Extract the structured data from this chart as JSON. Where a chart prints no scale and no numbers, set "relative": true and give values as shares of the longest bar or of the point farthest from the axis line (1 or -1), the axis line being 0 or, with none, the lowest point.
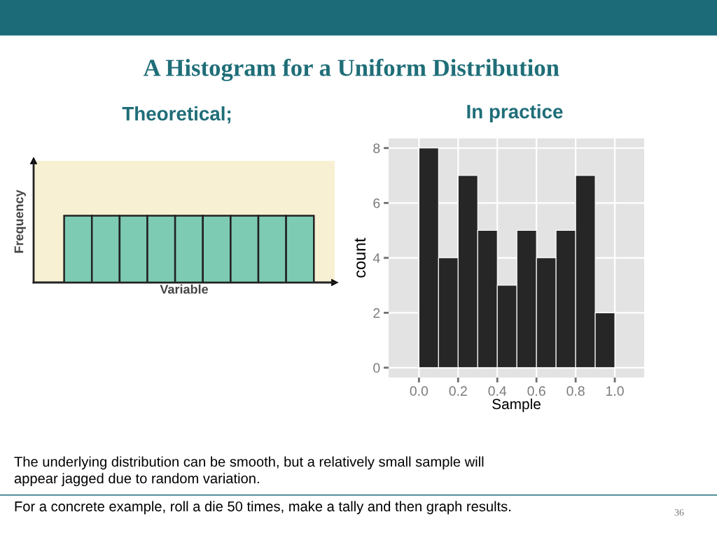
{
  "chart_data": [
    {
      "type": "bar",
      "title": "A Histogram for a Uniform Distribution",
      "subtitle": "Theoretical;",
      "categories": [
        null,
        null,
        null,
        null,
        null,
        null,
        null,
        null,
        null
      ],
      "values": [
        1,
        1,
        1,
        1,
        1,
        1,
        1,
        1,
        1
      ],
      "relative": true,
      "color": "#7ecbb4",
      "xlabel": "Variable",
      "ylabel": "Frequency",
      "tick_labels": false
    },
    {
      "type": "histogram",
      "title": "In practice",
      "bins": [
        0,
        0.1,
        0.2,
        0.3,
        0.4,
        0.5,
        0.6,
        0.7,
        0.8,
        0.9,
        1.0
      ],
      "values": [
        8,
        4,
        7,
        5,
        3,
        5,
        4,
        5,
        7,
        2
      ],
      "color": "#262626",
      "xlabel": "Sample",
      "ylabel": "count",
      "xlim": [
        -0.155,
        1.15
      ],
      "ylim": [
        -0.36,
        8.35
      ],
      "xticks": [
        {
          "value": 0,
          "label": "0.0"
        },
        {
          "value": 0.2,
          "label": "0.2"
        },
        {
          "value": 0.4,
          "label": "0.4"
        },
        {
          "value": 0.6,
          "label": "0.6"
        },
        {
          "value": 0.8,
          "label": "0.8"
        },
        {
          "value": 1.0,
          "label": "1.0"
        }
      ],
      "yticks": [
        0,
        2,
        4,
        6,
        8
      ],
      "grid": true,
      "annotations": [
        "The underlying distribution can be smooth, but a relatively small sample will\nappear jagged due to random variation.",
        "For a concrete example, roll a die 50 times, make a tally and then graph results.",
        "36"
      ]
    }
  ]
}
